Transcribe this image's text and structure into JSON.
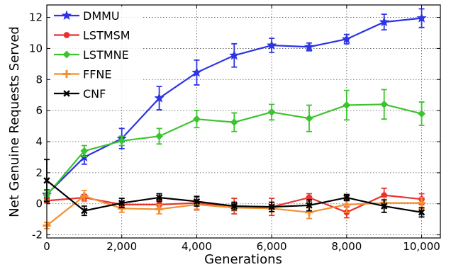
{
  "chart_data": {
    "type": "line",
    "xlabel": "Generations",
    "ylabel": "Net Genuine Requests Served",
    "xlim": [
      0,
      10500
    ],
    "ylim": [
      -2.2,
      12.8
    ],
    "x": [
      0,
      1000,
      2000,
      3000,
      4000,
      5000,
      6000,
      7000,
      8000,
      9000,
      10000
    ],
    "xticks": [
      0,
      2000,
      4000,
      6000,
      8000,
      10000
    ],
    "xtick_labels": [
      "0",
      "2,000",
      "4,000",
      "6,000",
      "8,000",
      "10,000"
    ],
    "yticks": [
      -2,
      0,
      2,
      4,
      6,
      8,
      10,
      12
    ],
    "ytick_labels": [
      "-2",
      "0",
      "2",
      "4",
      "6",
      "8",
      "10",
      "12"
    ],
    "grid": true,
    "legend_position": "top-left",
    "series": [
      {
        "name": "DMMU",
        "color": "#2d33e6",
        "marker": "star",
        "values": [
          0.6,
          3.0,
          4.2,
          6.8,
          8.45,
          9.55,
          10.2,
          10.1,
          10.6,
          11.7,
          11.95
        ],
        "errors": [
          0.3,
          0.45,
          0.65,
          0.75,
          0.8,
          0.75,
          0.45,
          0.25,
          0.3,
          0.5,
          0.6
        ]
      },
      {
        "name": "LSTMSM",
        "color": "#e8322f",
        "marker": "circle",
        "values": [
          0.2,
          0.4,
          -0.05,
          -0.05,
          0.05,
          -0.15,
          -0.2,
          0.4,
          -0.55,
          0.55,
          0.3
        ],
        "errors": [
          0.15,
          0.2,
          0.15,
          0.25,
          0.45,
          0.5,
          0.55,
          0.25,
          0.35,
          0.45,
          0.35
        ]
      },
      {
        "name": "LSTMNE",
        "color": "#3cc42e",
        "marker": "diamond",
        "values": [
          0.55,
          3.4,
          4.05,
          4.35,
          5.45,
          5.25,
          5.9,
          5.5,
          6.35,
          6.4,
          5.8
        ],
        "errors": [
          0.3,
          0.35,
          0.3,
          0.5,
          0.55,
          0.6,
          0.5,
          0.85,
          0.95,
          0.95,
          0.75
        ]
      },
      {
        "name": "FFNE",
        "color": "#f2902f",
        "marker": "plus",
        "values": [
          -1.4,
          0.5,
          -0.3,
          -0.35,
          -0.05,
          -0.25,
          -0.3,
          -0.55,
          -0.05,
          0.05,
          0.05
        ],
        "errors": [
          0.2,
          0.35,
          0.25,
          0.3,
          0.3,
          0.2,
          0.2,
          0.4,
          0.5,
          0.35,
          0.35
        ]
      },
      {
        "name": "CNF",
        "color": "#000000",
        "marker": "x",
        "values": [
          1.5,
          -0.45,
          0.05,
          0.4,
          0.15,
          -0.15,
          -0.2,
          -0.1,
          0.4,
          -0.15,
          -0.55
        ],
        "errors": [
          1.35,
          0.3,
          0.3,
          0.25,
          0.3,
          0.25,
          0.3,
          0.35,
          0.2,
          0.4,
          0.3
        ]
      }
    ]
  }
}
